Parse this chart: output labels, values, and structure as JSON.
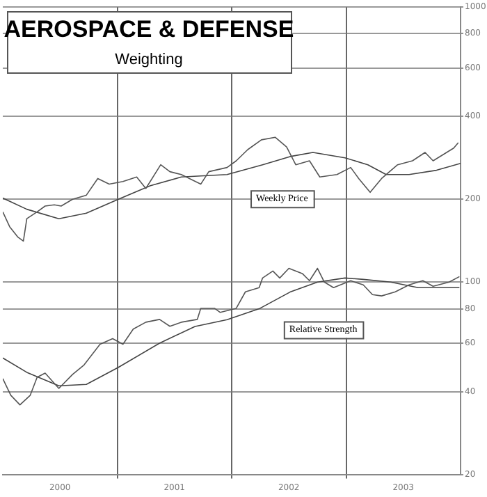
{
  "chart_data": {
    "type": "line",
    "title": "AEROSPACE & DEFENSE",
    "subtitle": "Weighting",
    "series": [
      {
        "color": "#555555",
        "x": [
          2000.0,
          2000.06,
          2000.13,
          2000.18,
          2000.21,
          2000.3,
          2000.37,
          2000.45,
          2000.51,
          2000.61,
          2000.73,
          2000.83,
          2000.93,
          2001.05,
          2001.17,
          2001.25,
          2001.38,
          2001.46,
          2001.56,
          2001.73,
          2001.8,
          2001.96,
          2002.04,
          2002.14,
          2002.26,
          2002.38,
          2002.48,
          2002.56,
          2002.68,
          2002.77,
          2002.92,
          2003.04,
          2003.11,
          2003.21,
          2003.31,
          2003.45,
          2003.58,
          2003.69,
          2003.76,
          2003.94,
          2003.98
        ],
        "values": [
          180,
          159,
          146,
          141,
          170,
          180,
          189,
          191,
          189,
          200,
          207,
          238,
          227,
          232,
          241,
          219,
          267,
          252,
          246,
          227,
          252,
          261,
          276,
          303,
          329,
          336,
          310,
          267,
          276,
          241,
          246,
          261,
          238,
          212,
          238,
          267,
          276,
          296,
          276,
          307,
          321
        ]
      },
      {
        "color": "#444444",
        "x": [
          2000.0,
          2000.21,
          2000.49,
          2000.73,
          2001.01,
          2001.29,
          2001.56,
          2001.96,
          2002.27,
          2002.51,
          2002.71,
          2002.99,
          2003.19,
          2003.35,
          2003.55,
          2003.79,
          2004.0
        ],
        "values": [
          202,
          184,
          170,
          178,
          200,
          224,
          241,
          246,
          267,
          286,
          296,
          283,
          267,
          246,
          246,
          255,
          270
        ]
      },
      {
        "color": "#555555",
        "x": [
          2000.0,
          2000.07,
          2000.15,
          2000.24,
          2000.3,
          2000.37,
          2000.49,
          2000.61,
          2000.71,
          2000.85,
          2000.96,
          2001.05,
          2001.14,
          2001.25,
          2001.37,
          2001.46,
          2001.56,
          2001.7,
          2001.73,
          2001.85,
          2001.9,
          2002.04,
          2002.12,
          2002.24,
          2002.27,
          2002.36,
          2002.42,
          2002.5,
          2002.62,
          2002.68,
          2002.75,
          2002.81,
          2002.89,
          2003.04,
          2003.15,
          2003.23,
          2003.31,
          2003.43,
          2003.55,
          2003.67,
          2003.76,
          2003.9,
          2003.99
        ],
        "values": [
          44.6,
          38.8,
          35.8,
          38.8,
          45.1,
          46.7,
          41.1,
          46.2,
          50,
          59.5,
          62.3,
          59.5,
          67.5,
          71.5,
          73.2,
          69.1,
          71.5,
          73.2,
          80.3,
          80.3,
          77.6,
          80.3,
          92.2,
          95.5,
          103.5,
          109.7,
          103.5,
          112.2,
          107.2,
          101.2,
          112.2,
          100,
          95.5,
          101.2,
          97.7,
          90.1,
          89.1,
          92.2,
          97.7,
          101.2,
          96.6,
          100,
          104.7
        ]
      },
      {
        "color": "#444444",
        "x": [
          2000.0,
          2000.21,
          2000.49,
          2000.73,
          2001.01,
          2001.37,
          2001.68,
          2001.96,
          2002.24,
          2002.51,
          2002.75,
          2002.99,
          2003.15,
          2003.39,
          2003.63,
          2003.99
        ],
        "values": [
          53,
          47,
          42,
          42.5,
          49,
          60,
          69,
          73,
          80,
          92,
          100,
          103.5,
          102.3,
          100,
          95.5,
          95.5
        ]
      }
    ],
    "xlim": [
      2000,
      2004
    ],
    "xticks": [
      {
        "value": 2000.5,
        "label": "2000"
      },
      {
        "value": 2001,
        "label": null
      },
      {
        "value": 2001.5,
        "label": "2001"
      },
      {
        "value": 2002,
        "label": null
      },
      {
        "value": 2002.5,
        "label": "2002"
      },
      {
        "value": 2003,
        "label": null
      },
      {
        "value": 2003.5,
        "label": "2003"
      }
    ],
    "log": "y",
    "ylim": [
      20,
      1000
    ],
    "yticks": [
      20,
      40,
      60,
      80,
      100,
      200,
      400,
      600,
      800,
      1000
    ],
    "grid": true,
    "line_style": "solid",
    "marker": "none",
    "annotations": [
      "Weekly Price",
      "Relative Strength"
    ]
  }
}
